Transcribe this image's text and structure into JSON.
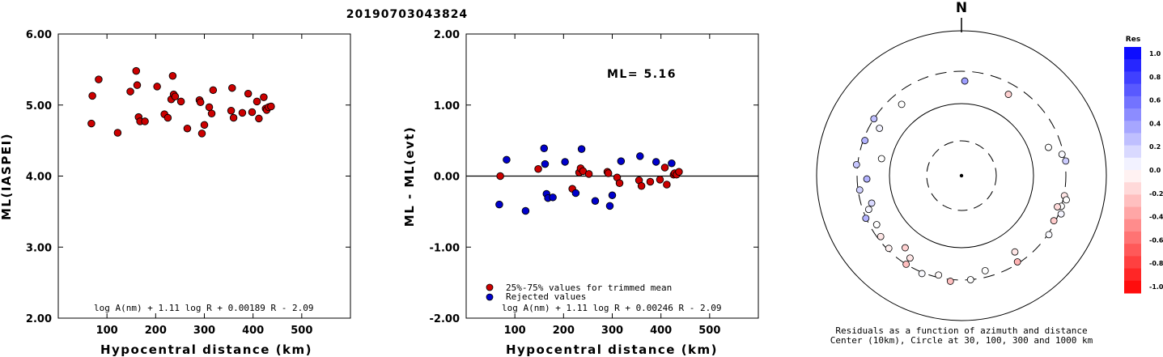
{
  "title": "20190703043824",
  "chart_data": [
    {
      "type": "scatter",
      "xlabel": "Hypocentral distance (km)",
      "ylabel": "ML(IASPEI)",
      "xlim": [
        0,
        600
      ],
      "ylim": [
        2.0,
        6.0
      ],
      "xticks": [
        "100",
        "200",
        "300",
        "400",
        "500"
      ],
      "yticks": [
        "2.00",
        "3.00",
        "4.00",
        "5.00",
        "6.00"
      ],
      "formula": "log A(nm) + 1.11 log R + 0.00189 R - 2.09",
      "series": [
        {
          "color": "#cc0000",
          "points": [
            [
              68,
              4.74
            ],
            [
              70,
              5.13
            ],
            [
              83,
              5.36
            ],
            [
              122,
              4.61
            ],
            [
              148,
              5.19
            ],
            [
              160,
              5.48
            ],
            [
              162,
              5.28
            ],
            [
              165,
              4.83
            ],
            [
              168,
              4.77
            ],
            [
              178,
              4.77
            ],
            [
              203,
              5.26
            ],
            [
              218,
              4.87
            ],
            [
              225,
              4.82
            ],
            [
              232,
              5.08
            ],
            [
              235,
              5.41
            ],
            [
              237,
              5.15
            ],
            [
              240,
              5.12
            ],
            [
              252,
              5.05
            ],
            [
              265,
              4.67
            ],
            [
              290,
              5.07
            ],
            [
              292,
              5.04
            ],
            [
              295,
              4.6
            ],
            [
              300,
              4.72
            ],
            [
              310,
              4.97
            ],
            [
              315,
              4.88
            ],
            [
              318,
              5.21
            ],
            [
              355,
              4.92
            ],
            [
              357,
              5.24
            ],
            [
              360,
              4.82
            ],
            [
              378,
              4.89
            ],
            [
              390,
              5.16
            ],
            [
              398,
              4.9
            ],
            [
              408,
              5.05
            ],
            [
              412,
              4.81
            ],
            [
              422,
              5.11
            ],
            [
              426,
              4.95
            ],
            [
              428,
              4.93
            ],
            [
              432,
              4.97
            ],
            [
              437,
              4.98
            ]
          ]
        }
      ]
    },
    {
      "type": "scatter",
      "xlabel": "Hypocentral distance (km)",
      "ylabel": "ML - ML(evt)",
      "xlim": [
        0,
        600
      ],
      "ylim": [
        -2.0,
        2.0
      ],
      "xticks": [
        "100",
        "200",
        "300",
        "400",
        "500"
      ],
      "yticks": [
        "-2.00",
        "-1.00",
        "0.00",
        "1.00",
        "2.00"
      ],
      "annotation": "ML= 5.16",
      "formula": "log A(nm) + 1.11 log R + 0.00246 R - 2.09",
      "legend": {
        "placement": "bottom-left",
        "entries": [
          {
            "label": "25%-75% values for trimmed mean",
            "color": "#cc0000"
          },
          {
            "label": "Rejected values",
            "color": "#0000cc"
          }
        ]
      },
      "series": [
        {
          "name": "25%-75% values for trimmed mean",
          "color": "#cc0000",
          "points": [
            [
              70,
              0.0
            ],
            [
              148,
              0.1
            ],
            [
              218,
              -0.18
            ],
            [
              232,
              0.05
            ],
            [
              235,
              0.11
            ],
            [
              240,
              0.07
            ],
            [
              252,
              0.03
            ],
            [
              290,
              0.06
            ],
            [
              292,
              0.04
            ],
            [
              310,
              -0.02
            ],
            [
              315,
              -0.1
            ],
            [
              355,
              -0.06
            ],
            [
              360,
              -0.14
            ],
            [
              378,
              -0.08
            ],
            [
              398,
              -0.05
            ],
            [
              408,
              0.12
            ],
            [
              412,
              -0.12
            ],
            [
              426,
              0.02
            ],
            [
              428,
              0.04
            ],
            [
              432,
              0.02
            ],
            [
              437,
              0.06
            ]
          ]
        },
        {
          "name": "Rejected values",
          "color": "#0000cc",
          "points": [
            [
              68,
              -0.4
            ],
            [
              83,
              0.23
            ],
            [
              122,
              -0.49
            ],
            [
              160,
              0.39
            ],
            [
              162,
              0.17
            ],
            [
              165,
              -0.25
            ],
            [
              168,
              -0.31
            ],
            [
              178,
              -0.3
            ],
            [
              203,
              0.2
            ],
            [
              225,
              -0.24
            ],
            [
              237,
              0.38
            ],
            [
              265,
              -0.35
            ],
            [
              295,
              -0.42
            ],
            [
              300,
              -0.27
            ],
            [
              318,
              0.21
            ],
            [
              357,
              0.28
            ],
            [
              390,
              0.2
            ],
            [
              422,
              0.18
            ]
          ]
        }
      ]
    },
    {
      "type": "polar",
      "north_label": "N",
      "caption1": "Residuals as a function of azimuth and distance",
      "caption2": "Center (10km), Circle at 30, 100, 300 and 1000 km",
      "colorbar": {
        "title": "Res",
        "range": [
          -1.0,
          1.0
        ],
        "labels": [
          "1.0",
          "0.8",
          "0.6",
          "0.4",
          "0.2",
          "0.0",
          "-0.2",
          "-0.4",
          "-0.6",
          "-0.8",
          "-1.0"
        ]
      },
      "rings_km": [
        30,
        100,
        300,
        1000
      ],
      "stations": [
        {
          "az": 2,
          "dist": 240,
          "res": 0.38
        },
        {
          "az": 30,
          "dist": 235,
          "res": -0.18
        },
        {
          "az": 82,
          "dist": 315,
          "res": 0.2
        },
        {
          "az": 78,
          "dist": 290,
          "res": 0.02
        },
        {
          "az": 101,
          "dist": 308,
          "res": -0.1
        },
        {
          "az": 107,
          "dist": 300,
          "res": 0.0
        },
        {
          "az": 103,
          "dist": 355,
          "res": 0.0
        },
        {
          "az": 111,
          "dist": 340,
          "res": 0.04
        },
        {
          "az": 108,
          "dist": 278,
          "res": -0.14
        },
        {
          "az": 116,
          "dist": 290,
          "res": -0.2
        },
        {
          "az": 124,
          "dist": 318,
          "res": 0.02
        },
        {
          "az": 147,
          "dist": 290,
          "res": -0.3
        },
        {
          "az": 145,
          "dist": 230,
          "res": -0.1
        },
        {
          "az": 166,
          "dist": 260,
          "res": 0.0
        },
        {
          "az": 175,
          "dist": 300,
          "res": 0.0
        },
        {
          "az": 186,
          "dist": 330,
          "res": -0.25
        },
        {
          "az": 193,
          "dist": 285,
          "res": -0.02
        },
        {
          "az": 202,
          "dist": 320,
          "res": 0.02
        },
        {
          "az": 212,
          "dist": 300,
          "res": -0.25
        },
        {
          "az": 212,
          "dist": 255,
          "res": -0.1
        },
        {
          "az": 225,
          "dist": 290,
          "res": -0.05
        },
        {
          "az": 218,
          "dist": 220,
          "res": -0.18
        },
        {
          "az": 233,
          "dist": 280,
          "res": -0.1
        },
        {
          "az": 246,
          "dist": 305,
          "res": 0.3
        },
        {
          "az": 240,
          "dist": 260,
          "res": 0.0
        },
        {
          "az": 253,
          "dist": 235,
          "res": 0.15
        },
        {
          "az": 250,
          "dist": 265,
          "res": 0.03
        },
        {
          "az": 262,
          "dist": 290,
          "res": 0.18
        },
        {
          "az": 268,
          "dist": 240,
          "res": 0.3
        },
        {
          "az": 276,
          "dist": 320,
          "res": 0.22
        },
        {
          "az": 290,
          "dist": 290,
          "res": 0.3
        },
        {
          "az": 300,
          "dist": 240,
          "res": 0.05
        },
        {
          "az": 303,
          "dist": 300,
          "res": 0.25
        },
        {
          "az": 320,
          "dist": 230,
          "res": 0.0
        },
        {
          "az": 282,
          "dist": 160,
          "res": 0.0
        },
        {
          "az": 72,
          "dist": 220,
          "res": 0.0
        }
      ]
    }
  ]
}
